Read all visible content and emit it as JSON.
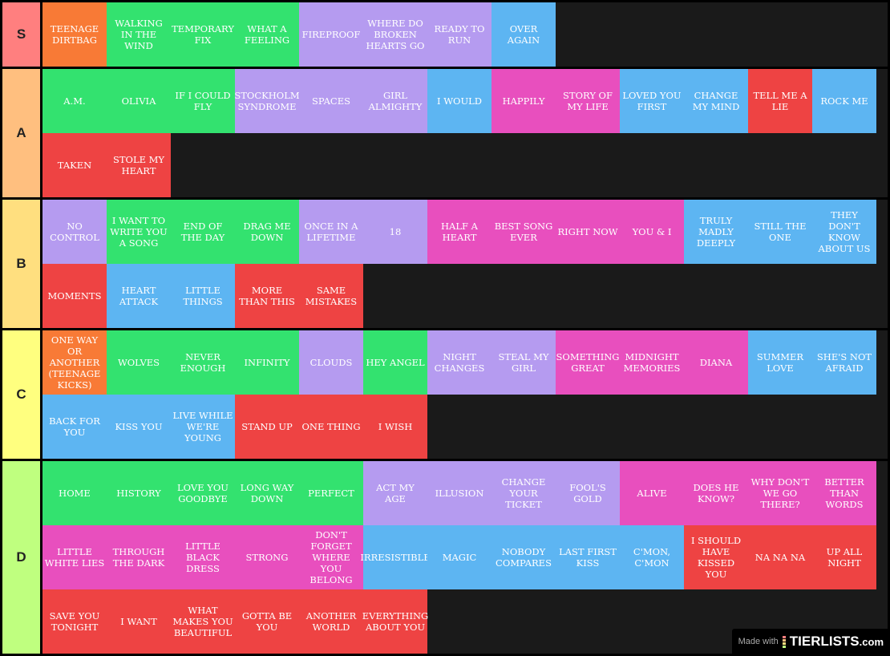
{
  "colors": {
    "o": "#f87a36",
    "g": "#33e26f",
    "p": "#b59bf0",
    "b": "#5db5f2",
    "k": "#e84fbe",
    "r": "#ee4343"
  },
  "tiers": [
    {
      "label": "S",
      "color": "#ff7f7f",
      "items": [
        [
          "TEENAGE DIRTBAG",
          "o"
        ],
        [
          "WALKING IN THE WIND",
          "g"
        ],
        [
          "TEMPORARY FIX",
          "g"
        ],
        [
          "WHAT A FEELING",
          "g"
        ],
        [
          "FIREPROOF",
          "p"
        ],
        [
          "WHERE DO BROKEN HEARTS GO",
          "p"
        ],
        [
          "READY TO RUN",
          "p"
        ],
        [
          "OVER AGAIN",
          "b"
        ]
      ]
    },
    {
      "label": "A",
      "color": "#ffbf7f",
      "items": [
        [
          "A.M.",
          "g"
        ],
        [
          "OLIVIA",
          "g"
        ],
        [
          "IF I COULD FLY",
          "g"
        ],
        [
          "STOCKHOLM SYNDROME",
          "p"
        ],
        [
          "SPACES",
          "p"
        ],
        [
          "GIRL ALMIGHTY",
          "p"
        ],
        [
          "I WOULD",
          "b"
        ],
        [
          "HAPPILY",
          "k"
        ],
        [
          "STORY OF MY LIFE",
          "k"
        ],
        [
          "LOVED YOU FIRST",
          "b"
        ],
        [
          "CHANGE MY MIND",
          "b"
        ],
        [
          "TELL ME A LIE",
          "r"
        ],
        [
          "ROCK ME",
          "b"
        ],
        [
          "TAKEN",
          "r"
        ],
        [
          "STOLE MY HEART",
          "r"
        ]
      ]
    },
    {
      "label": "B",
      "color": "#ffdf7f",
      "items": [
        [
          "NO CONTROL",
          "p"
        ],
        [
          "I WANT TO WRITE YOU A SONG",
          "g"
        ],
        [
          "END OF THE DAY",
          "g"
        ],
        [
          "DRAG ME DOWN",
          "g"
        ],
        [
          "ONCE IN A LIFETIME",
          "p"
        ],
        [
          "18",
          "p"
        ],
        [
          "HALF A HEART",
          "k"
        ],
        [
          "BEST SONG EVER",
          "k"
        ],
        [
          "RIGHT NOW",
          "k"
        ],
        [
          "YOU & I",
          "k"
        ],
        [
          "TRULY MADLY DEEPLY",
          "b"
        ],
        [
          "STILL THE ONE",
          "b"
        ],
        [
          "THEY DON'T KNOW ABOUT US",
          "b"
        ],
        [
          "MOMENTS",
          "r"
        ],
        [
          "HEART ATTACK",
          "b"
        ],
        [
          "LITTLE THINGS",
          "b"
        ],
        [
          "MORE THAN THIS",
          "r"
        ],
        [
          "SAME MISTAKES",
          "r"
        ]
      ]
    },
    {
      "label": "C",
      "color": "#ffff7f",
      "items": [
        [
          "ONE WAY OR ANOTHER (TEENAGE KICKS)",
          "o"
        ],
        [
          "WOLVES",
          "g"
        ],
        [
          "NEVER ENOUGH",
          "g"
        ],
        [
          "INFINITY",
          "g"
        ],
        [
          "CLOUDS",
          "p"
        ],
        [
          "HEY ANGEL",
          "g"
        ],
        [
          "NIGHT CHANGES",
          "p"
        ],
        [
          "STEAL MY GIRL",
          "p"
        ],
        [
          "SOMETHING GREAT",
          "k"
        ],
        [
          "MIDNIGHT MEMORIES",
          "k"
        ],
        [
          "DIANA",
          "k"
        ],
        [
          "SUMMER LOVE",
          "b"
        ],
        [
          "SHE'S NOT AFRAID",
          "b"
        ],
        [
          "BACK FOR YOU",
          "b"
        ],
        [
          "KISS YOU",
          "b"
        ],
        [
          "LIVE WHILE WE'RE YOUNG",
          "b"
        ],
        [
          "STAND UP",
          "r"
        ],
        [
          "ONE THING",
          "r"
        ],
        [
          "I WISH",
          "r"
        ]
      ]
    },
    {
      "label": "D",
      "color": "#bfff7f",
      "items": [
        [
          "HOME",
          "g"
        ],
        [
          "HISTORY",
          "g"
        ],
        [
          "LOVE YOU GOODBYE",
          "g"
        ],
        [
          "LONG WAY DOWN",
          "g"
        ],
        [
          "PERFECT",
          "g"
        ],
        [
          "ACT MY AGE",
          "p"
        ],
        [
          "ILLUSION",
          "p"
        ],
        [
          "CHANGE YOUR TICKET",
          "p"
        ],
        [
          "FOOL'S GOLD",
          "p"
        ],
        [
          "ALIVE",
          "k"
        ],
        [
          "DOES HE KNOW?",
          "k"
        ],
        [
          "WHY DON'T WE GO THERE?",
          "k"
        ],
        [
          "BETTER THAN WORDS",
          "k"
        ],
        [
          "LITTLE WHITE LIES",
          "k"
        ],
        [
          "THROUGH THE DARK",
          "k"
        ],
        [
          "LITTLE BLACK DRESS",
          "k"
        ],
        [
          "STRONG",
          "k"
        ],
        [
          "DON'T FORGET WHERE YOU BELONG",
          "k"
        ],
        [
          "IRRESISTIBLE",
          "b"
        ],
        [
          "MAGIC",
          "b"
        ],
        [
          "NOBODY COMPARES",
          "b"
        ],
        [
          "LAST FIRST KISS",
          "b"
        ],
        [
          "C'MON, C'MON",
          "b"
        ],
        [
          "I SHOULD HAVE KISSED YOU",
          "r"
        ],
        [
          "NA NA NA",
          "r"
        ],
        [
          "UP ALL NIGHT",
          "r"
        ],
        [
          "SAVE YOU TONIGHT",
          "r"
        ],
        [
          "I WANT",
          "r"
        ],
        [
          "WHAT MAKES YOU BEAUTIFUL",
          "r"
        ],
        [
          "GOTTA BE YOU",
          "r"
        ],
        [
          "ANOTHER WORLD",
          "r"
        ],
        [
          "EVERYTHING ABOUT YOU",
          "r"
        ]
      ]
    }
  ],
  "badge": {
    "made_with": "Made with",
    "logo": "TIERLISTS",
    "logo_suffix": ".com"
  }
}
